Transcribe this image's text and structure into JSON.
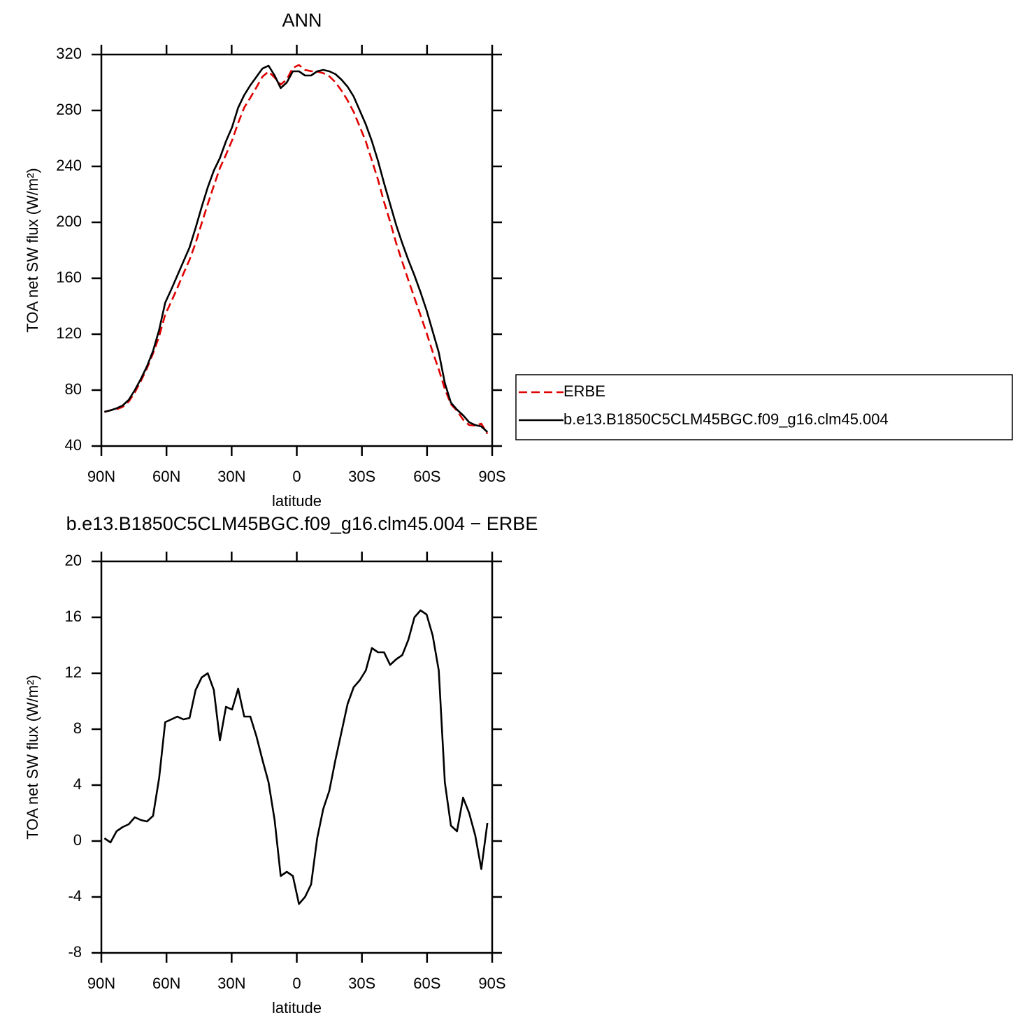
{
  "chart_data": [
    {
      "type": "line",
      "title": "ANN",
      "xlabel": "latitude",
      "ylabel": "TOA net SW flux (W/m²)",
      "x": [
        88.6,
        85.8,
        83.0,
        80.2,
        77.4,
        74.6,
        71.8,
        69.0,
        66.2,
        63.4,
        60.6,
        57.8,
        55.0,
        52.2,
        49.4,
        46.6,
        43.8,
        41.0,
        38.2,
        35.4,
        32.6,
        29.8,
        27.0,
        24.2,
        21.4,
        18.6,
        15.8,
        13.0,
        10.2,
        7.4,
        4.6,
        1.8,
        -1.0,
        -3.8,
        -6.6,
        -9.4,
        -12.2,
        -15.0,
        -17.8,
        -20.6,
        -23.4,
        -26.2,
        -29.0,
        -31.8,
        -34.6,
        -37.4,
        -40.2,
        -43.0,
        -45.8,
        -48.6,
        -51.4,
        -54.2,
        -57.0,
        -59.8,
        -62.6,
        -65.4,
        -68.2,
        -71.0,
        -73.8,
        -76.6,
        -79.4,
        -82.2,
        -85.0,
        -87.8
      ],
      "series": [
        {
          "name": "ERBE",
          "color": "#e00000",
          "linestyle": "dashed",
          "values": [
            64.3,
            65.6,
            66.3,
            68.0,
            71.8,
            78.3,
            86.5,
            95.6,
            106.2,
            118.5,
            134.0,
            143.3,
            153.1,
            163.3,
            173.2,
            185.2,
            199.3,
            213.0,
            226.2,
            238.8,
            248.4,
            258.6,
            271.1,
            282.1,
            289.1,
            296.5,
            304.2,
            307.8,
            303.5,
            298.5,
            302.2,
            310.5,
            312.5,
            309.0,
            308.1,
            307.8,
            306.7,
            304.4,
            300.2,
            294.2,
            287.2,
            279.0,
            268.5,
            257.8,
            244.2,
            230.5,
            214.5,
            200.4,
            185.0,
            171.7,
            158.6,
            146.0,
            133.5,
            120.8,
            107.3,
            94.8,
            80.8,
            69.9,
            65.3,
            58.9,
            55.0,
            54.6,
            56.0,
            48.7
          ]
        },
        {
          "name": "b.e13.B1850C5CLM45BGC.f09_g16.clm45.004",
          "color": "#000000",
          "linestyle": "solid",
          "values": [
            64.5,
            65.5,
            67,
            69,
            73,
            80,
            88,
            97,
            108,
            123,
            142.5,
            152,
            162,
            172,
            182,
            196,
            211,
            225,
            237,
            246,
            258,
            268,
            282,
            291,
            298,
            304,
            310,
            312,
            305,
            296,
            300,
            308,
            308,
            305,
            305,
            308,
            309,
            308,
            306,
            302,
            297,
            290,
            280,
            270,
            258,
            244,
            228,
            213,
            198,
            185,
            173,
            162,
            150,
            137,
            122,
            107,
            85,
            71,
            66,
            62,
            57,
            55,
            54,
            50
          ]
        }
      ],
      "xlim": [
        90,
        -90
      ],
      "xticks": [
        {
          "value": 90,
          "label": "90N"
        },
        {
          "value": 60,
          "label": "60N"
        },
        {
          "value": 30,
          "label": "30N"
        },
        0,
        {
          "value": -30,
          "label": "30S"
        },
        {
          "value": -60,
          "label": "60S"
        },
        {
          "value": -90,
          "label": "90S"
        }
      ],
      "ylim": [
        40,
        320
      ],
      "yticks": [
        40,
        80,
        120,
        160,
        200,
        240,
        280,
        320
      ],
      "legend": "right",
      "grid": false
    },
    {
      "type": "line",
      "title": "b.e13.B1850C5CLM45BGC.f09_g16.clm45.004 − ERBE",
      "xlabel": "latitude",
      "ylabel": "TOA net SW flux (W/m²)",
      "x": [
        88.6,
        85.8,
        83.0,
        80.2,
        77.4,
        74.6,
        71.8,
        69.0,
        66.2,
        63.4,
        60.6,
        57.8,
        55.0,
        52.2,
        49.4,
        46.6,
        43.8,
        41.0,
        38.2,
        35.4,
        32.6,
        29.8,
        27.0,
        24.2,
        21.4,
        18.6,
        15.8,
        13.0,
        10.2,
        7.4,
        4.6,
        1.8,
        -1.0,
        -3.8,
        -6.6,
        -9.4,
        -12.2,
        -15.0,
        -17.8,
        -20.6,
        -23.4,
        -26.2,
        -29.0,
        -31.8,
        -34.6,
        -37.4,
        -40.2,
        -43.0,
        -45.8,
        -48.6,
        -51.4,
        -54.2,
        -57.0,
        -59.8,
        -62.6,
        -65.4,
        -68.2,
        -71.0,
        -73.8,
        -76.6,
        -79.4,
        -82.2,
        -85.0,
        -87.8
      ],
      "values": [
        0.2,
        -0.1,
        0.7,
        1.0,
        1.2,
        1.7,
        1.5,
        1.4,
        1.8,
        4.5,
        8.5,
        8.7,
        8.9,
        8.7,
        8.8,
        10.8,
        11.7,
        12.0,
        10.8,
        7.2,
        9.6,
        9.4,
        10.9,
        8.9,
        8.9,
        7.5,
        5.8,
        4.2,
        1.5,
        -2.5,
        -2.2,
        -2.5,
        -4.5,
        -4.0,
        -3.1,
        0.2,
        2.3,
        3.6,
        5.8,
        7.8,
        9.8,
        11.0,
        11.5,
        12.2,
        13.8,
        13.5,
        13.5,
        12.6,
        13.0,
        13.3,
        14.4,
        16.0,
        16.5,
        16.2,
        14.7,
        12.2,
        4.2,
        1.1,
        0.7,
        3.1,
        2.0,
        0.4,
        -2.0,
        1.3
      ],
      "color": "#000000",
      "xlim": [
        90,
        -90
      ],
      "xticks": [
        {
          "value": 90,
          "label": "90N"
        },
        {
          "value": 60,
          "label": "60N"
        },
        {
          "value": 30,
          "label": "30N"
        },
        0,
        {
          "value": -30,
          "label": "30S"
        },
        {
          "value": -60,
          "label": "60S"
        },
        {
          "value": -90,
          "label": "90S"
        }
      ],
      "ylim": [
        -8,
        20
      ],
      "yticks": [
        -8,
        -4,
        0,
        4,
        8,
        12,
        16,
        20
      ],
      "grid": false
    }
  ]
}
